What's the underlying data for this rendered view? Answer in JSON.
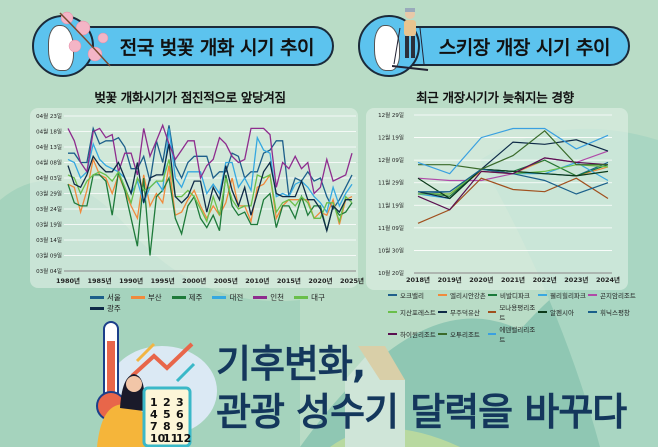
{
  "header": {
    "left_title": "전국 벚꽃 개화 시기 추이",
    "right_title": "스키장 개장 시기 추이",
    "left_subtitle": "벚꽃 개화시기가 점진적으로 앞당겨짐",
    "right_subtitle": "최근 개장시기가 늦춰지는 경향"
  },
  "footer": {
    "line1": "기후변화,",
    "line2": "관광 성수기 달력을 바꾸다",
    "calendar": [
      "1",
      "2",
      "3",
      "4",
      "5",
      "6",
      "7",
      "8",
      "9",
      "10",
      "11",
      "12"
    ]
  },
  "chart_data": [
    {
      "type": "line",
      "y_is_date": true,
      "yticks": [
        "03월 04일",
        "03월 09일",
        "03월 14일",
        "03월 19일",
        "03월 24일",
        "03월 29일",
        "04월 03일",
        "04월 08일",
        "04월 13일",
        "04월 18일",
        "04월 23일"
      ],
      "ylim": [
        "03-04",
        "04-23"
      ],
      "xticks": [
        "1980년",
        "1985년",
        "1990년",
        "1995년",
        "2000년",
        "2005년",
        "2010년",
        "2015년",
        "2020년",
        "2025년"
      ],
      "xlim": [
        1980,
        2025
      ],
      "x_start": 1980,
      "grid": true,
      "legend": "bottom",
      "series": [
        {
          "name": "서울",
          "color": "#1d5f8a",
          "values": [
            "04-11",
            "04-11",
            "04-08",
            "04-08",
            "04-19",
            "04-14",
            "04-15",
            "04-15",
            "04-16",
            "04-13",
            "04-06",
            "04-06",
            "04-10",
            "04-02",
            "04-15",
            "04-08",
            "04-20",
            "04-07",
            "04-03",
            "04-08",
            "04-10",
            "04-10",
            "04-10",
            "04-03",
            "04-05",
            "04-05",
            "04-11",
            "04-10",
            "04-03",
            "04-05",
            "04-05",
            "04-11",
            "04-12",
            "04-15",
            "04-15",
            "03-28",
            "04-03",
            "04-02",
            "04-05",
            "04-02",
            "04-03",
            "03-28",
            "03-24",
            "03-27",
            "03-31",
            "04-04"
          ]
        },
        {
          "name": "부산",
          "color": "#f08a3c",
          "values": [
            "04-01",
            "03-31",
            "03-23",
            "03-30",
            "04-09",
            "04-04",
            "04-03",
            "03-29",
            "04-04",
            "03-30",
            "03-25",
            "03-21",
            "04-04",
            "03-25",
            "03-29",
            "03-26",
            "04-07",
            "03-22",
            "03-23",
            "03-27",
            "03-30",
            "03-25",
            "03-21",
            "03-25",
            "03-22",
            "03-26",
            "04-03",
            "03-25",
            "03-25",
            "03-20",
            "03-31",
            "04-01",
            "04-04",
            "03-21",
            "03-25",
            "03-27",
            "03-27",
            "03-27",
            "03-27",
            "03-21",
            "03-23",
            "03-22",
            "03-27",
            "03-19",
            "03-27",
            "03-28"
          ]
        },
        {
          "name": "제주",
          "color": "#1e7a3a",
          "values": [
            "04-01",
            "03-26",
            "03-25",
            "03-25",
            "04-04",
            "04-04",
            "04-02",
            "03-22",
            "04-05",
            "03-30",
            "03-21",
            "03-12",
            "04-03",
            "03-09",
            "03-28",
            "03-30",
            "04-03",
            "03-21",
            "03-16",
            "03-25",
            "03-28",
            "03-21",
            "03-18",
            "03-22",
            "03-17",
            "04-04",
            "03-25",
            "03-22",
            "03-23",
            "03-19",
            "03-19",
            "03-27",
            "03-29",
            "03-18",
            "03-25",
            "03-25",
            "03-21",
            "03-28",
            "03-22",
            "03-25",
            "03-25",
            "03-17",
            "03-25",
            "03-22",
            "03-23",
            "03-26"
          ]
        },
        {
          "name": "대전",
          "color": "#35a8e0",
          "values": [
            "04-09",
            "04-08",
            "04-03",
            "04-05",
            "04-14",
            "04-09",
            "04-07",
            "04-06",
            "04-05",
            "04-03",
            "03-29",
            "04-02",
            "03-26",
            "03-31",
            "04-02",
            "03-30",
            "04-19",
            "04-03",
            "03-31",
            "04-05",
            "04-05",
            "04-05",
            "03-29",
            "04-01",
            "03-29",
            "04-08",
            "04-08",
            "03-31",
            "04-03",
            "03-30",
            "04-16",
            "04-12",
            "04-11",
            "03-28",
            "03-29",
            "03-28",
            "04-01",
            "04-02",
            "03-31",
            "03-28",
            "03-26",
            "03-23",
            "03-31",
            "03-25",
            "03-29",
            "04-01"
          ]
        },
        {
          "name": "인천",
          "color": "#8e2c8e",
          "values": [
            "04-19",
            "04-15",
            "04-08",
            "04-05",
            "04-18",
            "04-19",
            "04-16",
            "04-17",
            "04-05",
            "04-11",
            "04-11",
            "04-04",
            "04-19",
            "04-10",
            "04-15",
            "04-20",
            "04-14",
            "04-09",
            "04-12",
            "04-15",
            "04-15",
            "04-03",
            "04-07",
            "04-09",
            "04-16",
            "04-14",
            "04-10",
            "04-08",
            "04-09",
            "04-19",
            "04-19",
            "04-19",
            "04-17",
            "03-31",
            "04-08",
            "04-06",
            "04-10",
            "04-06",
            "04-08",
            "03-29",
            "03-31",
            "04-09",
            "04-02",
            "04-03",
            "04-04",
            "04-11"
          ]
        },
        {
          "name": "대구",
          "color": "#6abf4b",
          "values": [
            "04-04",
            "04-03",
            "03-29",
            "04-02",
            "04-04",
            "04-05",
            "04-04",
            "04-02",
            "04-05",
            "03-31",
            "03-26",
            "04-03",
            "03-30",
            "03-31",
            "04-02",
            "04-02",
            "04-09",
            "03-28",
            "03-28",
            "03-30",
            "03-28",
            "03-24",
            "03-20",
            "03-28",
            "03-22",
            "04-03",
            "03-27",
            "03-24",
            "03-25",
            "03-25",
            "04-04",
            "04-03",
            "04-04",
            "03-23",
            "03-26",
            "03-27",
            "03-25",
            "03-28",
            "03-26",
            "03-21",
            "03-21",
            "03-26",
            "03-26",
            "03-20",
            "03-28",
            "03-26"
          ]
        },
        {
          "name": "광주",
          "color": "#0e2a47",
          "values": [
            "04-07",
            "04-01",
            "03-31",
            "04-04",
            "04-10",
            "04-07",
            "04-05",
            "04-05",
            "04-08",
            "04-03",
            "03-29",
            "04-08",
            "03-26",
            "04-03",
            "04-04",
            "04-04",
            "04-14",
            "03-28",
            "03-26",
            "03-28",
            "04-02",
            "04-02",
            "03-23",
            "03-31",
            "03-27",
            "04-07",
            "03-30",
            "03-25",
            "03-31",
            "03-22",
            "03-29",
            "04-05",
            "04-08",
            "03-29",
            "03-28",
            "03-28",
            "03-28",
            "04-02",
            "03-27",
            "03-27",
            "03-24",
            "03-17",
            "03-25",
            "03-23",
            "03-27",
            "03-27"
          ]
        }
      ]
    },
    {
      "type": "line",
      "y_is_date": true,
      "yticks": [
        "10월 20일",
        "10월 30일",
        "11월 09일",
        "11월 19일",
        "11월 29일",
        "12월 09일",
        "12월 19일",
        "12월 29일"
      ],
      "ylim": [
        "10-20",
        "12-29"
      ],
      "xticks": [
        "2018년",
        "2019년",
        "2020년",
        "2021년",
        "2022년",
        "2023년",
        "2024년"
      ],
      "xlim": [
        2018,
        2024
      ],
      "x_start": 2018,
      "grid": true,
      "legend": "bottom",
      "series": [
        {
          "name": "오크밸리",
          "color": "#1f5f8b",
          "values": [
            "11-24",
            "11-25",
            "12-05",
            "12-04",
            "12-03",
            "12-02",
            "12-08"
          ]
        },
        {
          "name": "엘리시안강촌",
          "color": "#f08a3c",
          "values": [
            "11-24",
            "11-24",
            "12-04",
            "12-03",
            "12-09",
            "12-02",
            "12-06"
          ]
        },
        {
          "name": "비발디파크",
          "color": "#1a7a3a",
          "values": [
            "11-25",
            "11-23",
            "12-05",
            "12-04",
            "12-09",
            "12-02",
            "12-07"
          ]
        },
        {
          "name": "웰리힐리파크",
          "color": "#3aa8e0",
          "values": [
            "11-24",
            "11-22",
            "12-05",
            "12-03",
            "12-03",
            "12-08",
            "11-30"
          ]
        },
        {
          "name": "곤지암리조트",
          "color": "#b04aa8",
          "values": [
            "12-01",
            "11-30",
            "11-30",
            "12-03",
            "12-10",
            "12-08",
            "12-13"
          ]
        },
        {
          "name": "지산포레스트",
          "color": "#6abf4b",
          "values": [
            "11-24",
            "11-24",
            "12-05",
            "12-03",
            "12-04",
            "12-07",
            "12-06"
          ]
        },
        {
          "name": "무주덕유산",
          "color": "#0e2a47",
          "values": [
            "11-25",
            "11-22",
            "12-05",
            "12-17",
            "12-16",
            "12-18",
            "12-13"
          ]
        },
        {
          "name": "모나용평리조트",
          "color": "#a0501e",
          "values": [
            "11-11",
            "11-17",
            "12-01",
            "11-26",
            "11-25",
            "12-01",
            "11-22"
          ]
        },
        {
          "name": "알펜시아",
          "color": "#0b3a1a",
          "values": [
            "12-01",
            "11-22",
            "12-05",
            "12-04",
            "12-03",
            "12-02",
            "12-04"
          ]
        },
        {
          "name": "휘닉스평창",
          "color": "#1a5f8a",
          "values": [
            "11-25",
            "11-25",
            "12-05",
            "12-03",
            "11-30",
            "11-24",
            "11-29"
          ]
        },
        {
          "name": "하이원리조트",
          "color": "#5a1050",
          "values": [
            "11-23",
            "11-17",
            "12-04",
            "12-03",
            "12-10",
            "12-08",
            "12-07"
          ]
        },
        {
          "name": "오투리조트",
          "color": "#3a6a2a",
          "values": [
            "12-07",
            "12-07",
            "12-05",
            "12-11",
            "12-22",
            "12-07",
            "12-07"
          ]
        },
        {
          "name": "에덴밸리리조트",
          "color": "#3aa0e0",
          "values": [
            "12-08",
            "12-03",
            "12-19",
            "12-23",
            "12-23",
            "12-14",
            "12-20"
          ]
        }
      ]
    }
  ]
}
